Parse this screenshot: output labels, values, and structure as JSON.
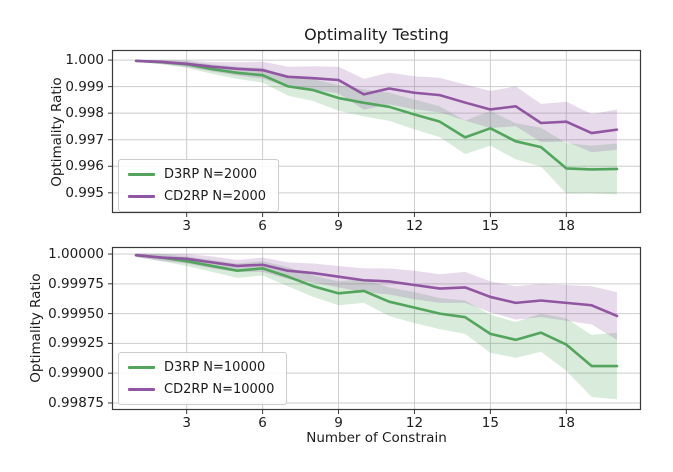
{
  "figure": {
    "title": "Optimality Testing",
    "xlabel": "Number of Constrain",
    "background": "#ffffff",
    "grid_color": "#cdcdcd",
    "spine_color": "#3a3a3a"
  },
  "chart_data": [
    {
      "type": "line",
      "title": "Optimality Testing",
      "ylabel": "Optimality Ratio",
      "xlabel": "",
      "grid": true,
      "legend_position": "lower-left",
      "x": [
        1,
        2,
        3,
        4,
        5,
        6,
        7,
        8,
        9,
        10,
        11,
        12,
        13,
        14,
        15,
        16,
        17,
        18,
        19,
        20
      ],
      "xticks": [
        3,
        6,
        9,
        12,
        15,
        18
      ],
      "xtick_labels": [
        "3",
        "6",
        "9",
        "12",
        "15",
        "18"
      ],
      "yticks": [
        1.0,
        0.999,
        0.998,
        0.997,
        0.996,
        0.995
      ],
      "ytick_labels": [
        "1.000",
        "0.999",
        "0.998",
        "0.997",
        "0.996",
        "0.995"
      ],
      "xlim": [
        0.05,
        20.95
      ],
      "ylim": [
        0.99424,
        1.00038
      ],
      "series": [
        {
          "name": "D3RP N=2000",
          "color": "#53a55d",
          "fill": "rgba(83,165,93,0.22)",
          "values": [
            0.99997,
            0.99992,
            0.99984,
            0.99966,
            0.99952,
            0.99943,
            0.99901,
            0.99887,
            0.99857,
            0.99839,
            0.99824,
            0.99795,
            0.99768,
            0.99709,
            0.99743,
            0.99694,
            0.99672,
            0.99592,
            0.99588,
            0.9959
          ],
          "band_halfwidth": [
            4e-05,
            8e-05,
            0.00013,
            0.00018,
            0.00023,
            0.00028,
            0.00035,
            0.00041,
            0.00048,
            0.00051,
            0.00053,
            0.00056,
            0.00058,
            0.00063,
            0.00065,
            0.00068,
            0.00073,
            0.00095,
            0.0009,
            0.00096
          ]
        },
        {
          "name": "CD2RP N=2000",
          "color": "#9156a2",
          "fill": "rgba(145,86,162,0.22)",
          "values": [
            0.99997,
            0.99993,
            0.99986,
            0.99975,
            0.99967,
            0.99962,
            0.99937,
            0.99932,
            0.99925,
            0.99871,
            0.99893,
            0.99877,
            0.99868,
            0.9984,
            0.99814,
            0.99826,
            0.99763,
            0.99768,
            0.99725,
            0.99738
          ],
          "band_halfwidth": [
            4e-05,
            7e-05,
            0.00012,
            0.00018,
            0.00025,
            0.00032,
            0.00038,
            0.00045,
            0.0005,
            0.00058,
            0.0006,
            0.00062,
            0.00065,
            0.00068,
            0.0007,
            0.00075,
            0.00072,
            0.00075,
            0.00072,
            0.00076
          ]
        }
      ]
    },
    {
      "type": "line",
      "title": "",
      "ylabel": "Optimality Ratio",
      "xlabel": "Number of Constrain",
      "grid": true,
      "legend_position": "lower-left",
      "x": [
        1,
        2,
        3,
        4,
        5,
        6,
        7,
        8,
        9,
        10,
        11,
        12,
        13,
        14,
        15,
        16,
        17,
        18,
        19,
        20
      ],
      "xticks": [
        3,
        6,
        9,
        12,
        15,
        18
      ],
      "xtick_labels": [
        "3",
        "6",
        "9",
        "12",
        "15",
        "18"
      ],
      "yticks": [
        1.0,
        0.99975,
        0.9995,
        0.99925,
        0.999,
        0.99875
      ],
      "ytick_labels": [
        "1.00000",
        "0.99975",
        "0.99950",
        "0.99925",
        "0.99900",
        "0.99875"
      ],
      "xlim": [
        0.05,
        20.95
      ],
      "ylim": [
        0.998691,
        1.000059
      ],
      "series": [
        {
          "name": "D3RP N=10000",
          "color": "#53a55d",
          "fill": "rgba(83,165,93,0.22)",
          "values": [
            0.99999,
            0.99997,
            0.99994,
            0.9999,
            0.99986,
            0.99988,
            0.99981,
            0.99973,
            0.99967,
            0.99969,
            0.9996,
            0.99955,
            0.9995,
            0.99947,
            0.99933,
            0.99928,
            0.99934,
            0.99924,
            0.99906,
            0.99906
          ],
          "band_halfwidth": [
            1.5e-05,
            3e-05,
            4e-05,
            5e-05,
            6e-05,
            6e-05,
            8e-05,
            9e-05,
            0.0001,
            0.0001,
            0.00012,
            0.00013,
            0.00013,
            0.00014,
            0.00016,
            0.00015,
            0.00016,
            0.00022,
            0.00026,
            0.00028
          ]
        },
        {
          "name": "CD2RP N=10000",
          "color": "#9156a2",
          "fill": "rgba(145,86,162,0.22)",
          "values": [
            0.99999,
            0.99997,
            0.99996,
            0.99993,
            0.9999,
            0.99991,
            0.99986,
            0.99984,
            0.99981,
            0.99978,
            0.99977,
            0.99974,
            0.99971,
            0.99972,
            0.99964,
            0.99959,
            0.99961,
            0.99959,
            0.99957,
            0.99948
          ],
          "band_halfwidth": [
            1.5e-05,
            3e-05,
            4e-05,
            5e-05,
            5e-05,
            6e-05,
            7e-05,
            8e-05,
            9e-05,
            0.0001,
            0.00011,
            0.00012,
            0.00012,
            0.00013,
            0.00013,
            0.00014,
            0.00014,
            0.00015,
            0.00016,
            0.0002
          ]
        }
      ]
    }
  ]
}
